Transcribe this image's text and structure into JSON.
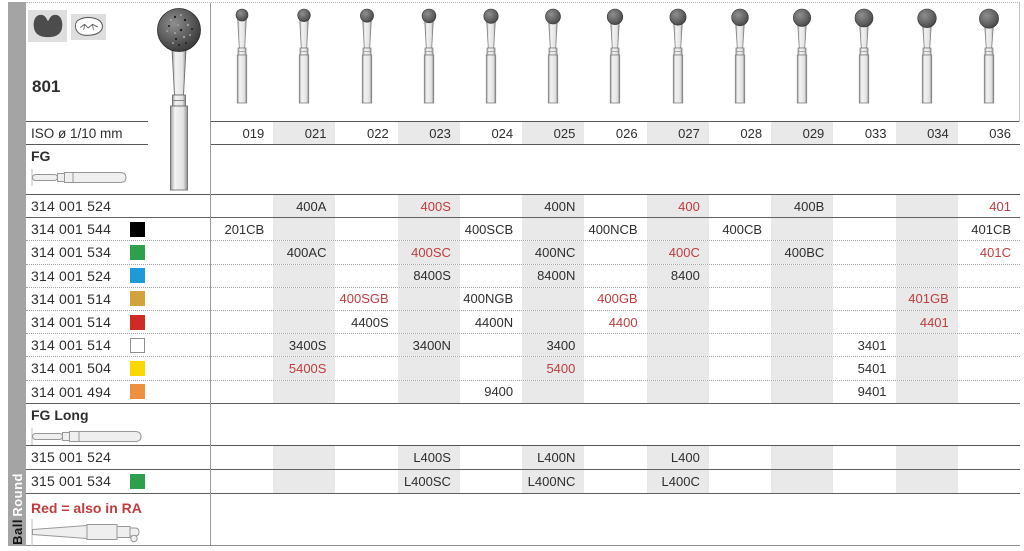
{
  "sidebar": {
    "top": "Round",
    "bottom": "Ball"
  },
  "header": {
    "model": "801",
    "icons": [
      "molar-silhouette-icon",
      "tooth-occlusal-icon"
    ]
  },
  "iso": {
    "label": "ISO ø 1/10 mm"
  },
  "columns": [
    "019",
    "021",
    "022",
    "023",
    "024",
    "025",
    "026",
    "027",
    "028",
    "029",
    "033",
    "034",
    "036"
  ],
  "sections": {
    "fg": {
      "label": "FG"
    },
    "fg_long": {
      "label": "FG Long"
    }
  },
  "fg_rows": [
    {
      "code": "314 001 524",
      "square": null,
      "sep": "solid",
      "cells": [
        {
          "c": 1,
          "t": "400A"
        },
        {
          "c": 3,
          "t": "400S",
          "r": 1
        },
        {
          "c": 5,
          "t": "400N"
        },
        {
          "c": 7,
          "t": "400",
          "r": 1
        },
        {
          "c": 9,
          "t": "400B"
        },
        {
          "c": 12,
          "t": "401",
          "r": 1
        }
      ]
    },
    {
      "code": "314 001 544",
      "square": "black",
      "sep": "dotted",
      "cells": [
        {
          "c": 0,
          "t": "201CB"
        },
        {
          "c": 4,
          "t": "400SCB"
        },
        {
          "c": 6,
          "t": "400NCB"
        },
        {
          "c": 8,
          "t": "400CB"
        },
        {
          "c": 12,
          "t": "401CB"
        }
      ]
    },
    {
      "code": "314 001 534",
      "square": "green",
      "sep": "dotted",
      "cells": [
        {
          "c": 1,
          "t": "400AC"
        },
        {
          "c": 3,
          "t": "400SC",
          "r": 1
        },
        {
          "c": 5,
          "t": "400NC"
        },
        {
          "c": 7,
          "t": "400C",
          "r": 1
        },
        {
          "c": 9,
          "t": "400BC"
        },
        {
          "c": 12,
          "t": "401C",
          "r": 1
        }
      ]
    },
    {
      "code": "314 001 524",
      "square": "blue",
      "sep": "dotted",
      "cells": [
        {
          "c": 3,
          "t": "8400S"
        },
        {
          "c": 5,
          "t": "8400N"
        },
        {
          "c": 7,
          "t": "8400"
        }
      ]
    },
    {
      "code": "314 001 514",
      "square": "gold",
      "sep": "dotted",
      "cells": [
        {
          "c": 2,
          "t": "400SGB",
          "r": 1
        },
        {
          "c": 4,
          "t": "400NGB"
        },
        {
          "c": 6,
          "t": "400GB",
          "r": 1
        },
        {
          "c": 11,
          "t": "401GB",
          "r": 1
        }
      ]
    },
    {
      "code": "314 001 514",
      "square": "red",
      "sep": "dotted",
      "cells": [
        {
          "c": 2,
          "t": "4400S"
        },
        {
          "c": 4,
          "t": "4400N"
        },
        {
          "c": 6,
          "t": "4400",
          "r": 1
        },
        {
          "c": 11,
          "t": "4401",
          "r": 1
        }
      ]
    },
    {
      "code": "314 001 514",
      "square": "white",
      "sep": "dotted",
      "cells": [
        {
          "c": 1,
          "t": "3400S"
        },
        {
          "c": 3,
          "t": "3400N"
        },
        {
          "c": 5,
          "t": "3400"
        },
        {
          "c": 10,
          "t": "3401"
        }
      ]
    },
    {
      "code": "314 001 504",
      "square": "yellow",
      "sep": "dotted",
      "cells": [
        {
          "c": 1,
          "t": "5400S",
          "r": 1
        },
        {
          "c": 5,
          "t": "5400",
          "r": 1
        },
        {
          "c": 10,
          "t": "5401"
        }
      ]
    },
    {
      "code": "314 001 494",
      "square": "orange",
      "sep": "solid",
      "cells": [
        {
          "c": 4,
          "t": "9400"
        },
        {
          "c": 10,
          "t": "9401"
        }
      ]
    }
  ],
  "fg_long_rows": [
    {
      "code": "315 001 524",
      "square": null,
      "sep": "solid",
      "cells": [
        {
          "c": 3,
          "t": "L400S"
        },
        {
          "c": 5,
          "t": "L400N"
        },
        {
          "c": 7,
          "t": "L400"
        }
      ]
    },
    {
      "code": "315 001 534",
      "square": "green",
      "sep": "solid",
      "cells": [
        {
          "c": 3,
          "t": "L400SC"
        },
        {
          "c": 5,
          "t": "L400NC"
        },
        {
          "c": 7,
          "t": "L400C"
        }
      ]
    }
  ],
  "footer": {
    "note": "Red = also in RA"
  },
  "colors": {
    "accent_red": "#c23c3e",
    "stripe": "#e9e9e9",
    "sidebar_gray": "#a4a4a4",
    "squares": {
      "black": "#000000",
      "green": "#2da04c",
      "blue": "#1f9ad8",
      "gold": "#d2a23d",
      "red": "#cf2b24",
      "white": "#ffffff",
      "yellow": "#f8d800",
      "orange": "#ee9040"
    }
  }
}
